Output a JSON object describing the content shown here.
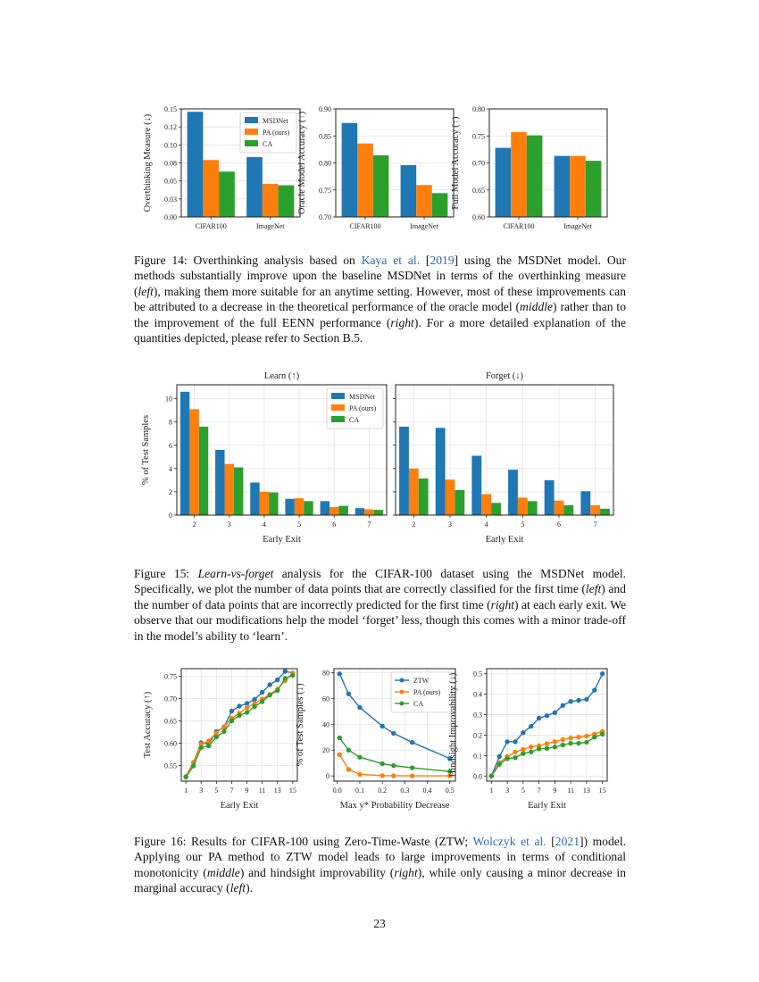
{
  "colors": {
    "MSDNet": "#1f77b4",
    "ZTW": "#1f77b4",
    "PA (ours)": "#ff7f0e",
    "CA": "#2ca02c",
    "link": "#2b6cb0"
  },
  "fig14": {
    "caption": [
      {
        "t": "Figure 14: Overthinking analysis based on "
      },
      {
        "t": "Kaya et al.",
        "s": "ln"
      },
      {
        "t": " ["
      },
      {
        "t": "2019",
        "s": "ln"
      },
      {
        "t": "] using the MSDNet model. Our methods substantially improve upon the baseline MSDNet in terms of the overthinking measure ("
      },
      {
        "t": "left",
        "s": "it"
      },
      {
        "t": "), making them more suitable for an anytime setting. However, most of these improvements can be attributed to a decrease in the theoretical performance of the oracle model ("
      },
      {
        "t": "middle",
        "s": "it"
      },
      {
        "t": ") rather than to the improvement of the full EENN performance ("
      },
      {
        "t": "right",
        "s": "it"
      },
      {
        "t": "). For a more detailed explanation of the quantities depicted, please refer to Section B.5."
      }
    ]
  },
  "fig15": {
    "caption": [
      {
        "t": "Figure 15: "
      },
      {
        "t": "Learn-vs-forget",
        "s": "it"
      },
      {
        "t": " analysis for the CIFAR-100 dataset using the MSDNet model. Specifically, we plot the number of data points that are correctly classified for the first time ("
      },
      {
        "t": "left",
        "s": "it"
      },
      {
        "t": ") and the number of data points that are incorrectly predicted for the first time ("
      },
      {
        "t": "right",
        "s": "it"
      },
      {
        "t": ") at each early exit. We observe that our modifications help the model ‘forget’ less, though this comes with a minor trade-off in the model’s ability to ‘learn’."
      }
    ]
  },
  "fig16": {
    "caption": [
      {
        "t": "Figure 16: Results for CIFAR-100 using Zero-Time-Waste (ZTW; "
      },
      {
        "t": "Wolczyk et al.",
        "s": "ln"
      },
      {
        "t": " ["
      },
      {
        "t": "2021",
        "s": "ln"
      },
      {
        "t": "]) model. Applying our PA method to ZTW model leads to large improvements in terms of conditional monotonicity ("
      },
      {
        "t": "middle",
        "s": "it"
      },
      {
        "t": ") and hindsight improvability ("
      },
      {
        "t": "right",
        "s": "it"
      },
      {
        "t": "), while only causing a minor decrease in marginal accuracy ("
      },
      {
        "t": "left",
        "s": "it"
      },
      {
        "t": ")."
      }
    ]
  },
  "page_number": "23",
  "chart_data": [
    {
      "id": "f14a",
      "type": "bar",
      "title": "",
      "xlabel": "",
      "ylabel": "Overthinking Measure (↓)",
      "categories": [
        "CIFAR100",
        "ImageNet"
      ],
      "ylim": [
        0,
        0.15
      ],
      "yticks": [
        0,
        0.025,
        0.05,
        0.075,
        0.1,
        0.125,
        0.15
      ],
      "yticklabels": [
        "0.00",
        "0.03",
        "0.05",
        "0.08",
        "0.10",
        "0.12",
        "0.15"
      ],
      "grid": true,
      "legend": "top-right",
      "series": [
        {
          "name": "MSDNet",
          "values": [
            0.146,
            0.083
          ]
        },
        {
          "name": "PA (ours)",
          "values": [
            0.079,
            0.046
          ]
        },
        {
          "name": "CA",
          "values": [
            0.063,
            0.044
          ]
        }
      ]
    },
    {
      "id": "f14b",
      "type": "bar",
      "title": "",
      "xlabel": "",
      "ylabel": "Oracle Model Accuracy (↑)",
      "categories": [
        "CIFAR100",
        "ImageNet"
      ],
      "ylim": [
        0.7,
        0.9
      ],
      "yticks": [
        0.7,
        0.75,
        0.8,
        0.85,
        0.9
      ],
      "yticklabels": [
        "0.70",
        "0.75",
        "0.80",
        "0.85",
        "0.90"
      ],
      "grid": true,
      "series": [
        {
          "name": "MSDNet",
          "values": [
            0.874,
            0.796
          ]
        },
        {
          "name": "PA (ours)",
          "values": [
            0.836,
            0.759
          ]
        },
        {
          "name": "CA",
          "values": [
            0.814,
            0.744
          ]
        }
      ]
    },
    {
      "id": "f14c",
      "type": "bar",
      "title": "",
      "xlabel": "",
      "ylabel": "Full Model Accuracy (↑)",
      "categories": [
        "CIFAR100",
        "ImageNet"
      ],
      "ylim": [
        0.6,
        0.8
      ],
      "yticks": [
        0.6,
        0.65,
        0.7,
        0.75,
        0.8
      ],
      "yticklabels": [
        "0.60",
        "0.65",
        "0.70",
        "0.75",
        "0.80"
      ],
      "grid": true,
      "series": [
        {
          "name": "MSDNet",
          "values": [
            0.728,
            0.713
          ]
        },
        {
          "name": "PA (ours)",
          "values": [
            0.757,
            0.713
          ]
        },
        {
          "name": "CA",
          "values": [
            0.751,
            0.704
          ]
        }
      ]
    },
    {
      "id": "f15a",
      "type": "bar",
      "title": "Learn (↑)",
      "xlabel": "Early Exit",
      "ylabel": "% of Test Samples",
      "categories": [
        "2",
        "3",
        "4",
        "5",
        "6",
        "7"
      ],
      "ylim": [
        0,
        11.2
      ],
      "yticks": [
        0,
        2,
        4,
        6,
        8,
        10
      ],
      "yticklabels": [
        "0",
        "2",
        "4",
        "6",
        "8",
        "10"
      ],
      "grid": true,
      "legend": "top-right",
      "series": [
        {
          "name": "MSDNet",
          "values": [
            10.6,
            5.6,
            2.8,
            1.4,
            1.2,
            0.6
          ]
        },
        {
          "name": "PA (ours)",
          "values": [
            9.1,
            4.4,
            2.0,
            1.45,
            0.7,
            0.5
          ]
        },
        {
          "name": "CA",
          "values": [
            7.6,
            4.1,
            1.95,
            1.2,
            0.8,
            0.45
          ]
        }
      ]
    },
    {
      "id": "f15b",
      "type": "bar",
      "title": "Forget (↓)",
      "xlabel": "Early Exit",
      "ylabel": "",
      "categories": [
        "2",
        "3",
        "4",
        "5",
        "6",
        "7"
      ],
      "ylim": [
        0,
        11.2
      ],
      "yticks": [
        0,
        2,
        4,
        6,
        8,
        10
      ],
      "yticklabels": [],
      "grid": true,
      "series": [
        {
          "name": "MSDNet",
          "values": [
            7.6,
            7.5,
            5.1,
            3.9,
            3.0,
            2.05
          ]
        },
        {
          "name": "PA (ours)",
          "values": [
            4.0,
            3.05,
            1.8,
            1.5,
            1.25,
            0.85
          ]
        },
        {
          "name": "CA",
          "values": [
            3.15,
            2.15,
            1.05,
            1.2,
            0.85,
            0.55
          ]
        }
      ]
    },
    {
      "id": "f16a",
      "type": "line",
      "title": "",
      "xlabel": "Early Exit",
      "ylabel": "Test Accuracy (↑)",
      "x": [
        1,
        2,
        3,
        4,
        5,
        6,
        7,
        8,
        9,
        10,
        11,
        12,
        13,
        14,
        15
      ],
      "xlim": [
        0.4,
        15.6
      ],
      "xticks": [
        1,
        3,
        5,
        7,
        9,
        11,
        13,
        15
      ],
      "ylim": [
        0.515,
        0.767
      ],
      "yticks": [
        0.55,
        0.6,
        0.65,
        0.7,
        0.75
      ],
      "yticklabels": [
        "0.55",
        "0.60",
        "0.65",
        "0.70",
        "0.75"
      ],
      "grid": true,
      "series": [
        {
          "name": "ZTW",
          "values": [
            0.525,
            0.557,
            0.601,
            0.598,
            0.626,
            0.636,
            0.672,
            0.683,
            0.689,
            0.698,
            0.714,
            0.731,
            0.742,
            0.761,
            0.757
          ]
        },
        {
          "name": "PA (ours)",
          "values": [
            0.525,
            0.557,
            0.598,
            0.605,
            0.623,
            0.637,
            0.656,
            0.667,
            0.68,
            0.689,
            0.699,
            0.709,
            0.721,
            0.74,
            0.757
          ]
        },
        {
          "name": "CA",
          "values": [
            0.524,
            0.549,
            0.59,
            0.594,
            0.614,
            0.626,
            0.65,
            0.662,
            0.669,
            0.682,
            0.693,
            0.708,
            0.718,
            0.745,
            0.752
          ]
        }
      ]
    },
    {
      "id": "f16b",
      "type": "line",
      "title": "",
      "xlabel": "Max y* Probability Decrease",
      "ylabel": "% of Test Samples (↓)",
      "x": [
        0.01,
        0.05,
        0.1,
        0.2,
        0.25,
        0.333,
        0.5
      ],
      "xlim": [
        -0.015,
        0.525
      ],
      "xticks": [
        0,
        0.1,
        0.2,
        0.3,
        0.4,
        0.5
      ],
      "xticklabels": [
        "0.0",
        "0.1",
        "0.2",
        "0.3",
        "0.4",
        "0.5"
      ],
      "ylim": [
        -4,
        83
      ],
      "yticks": [
        0,
        20,
        40,
        60,
        80
      ],
      "yticklabels": [
        "0",
        "20",
        "40",
        "60",
        "80"
      ],
      "grid": true,
      "legend": "top-right",
      "series": [
        {
          "name": "ZTW",
          "values": [
            79,
            63.5,
            53,
            38.5,
            33,
            26,
            13.5
          ]
        },
        {
          "name": "PA (ours)",
          "values": [
            16.5,
            5,
            1.3,
            0.3,
            0.2,
            0.1,
            0.1
          ]
        },
        {
          "name": "CA",
          "values": [
            29.5,
            20,
            14.5,
            9.5,
            8,
            6.3,
            3.5
          ]
        }
      ]
    },
    {
      "id": "f16c",
      "type": "line",
      "title": "",
      "xlabel": "Early Exit",
      "ylabel": "Hindsight Improvability (↓)",
      "x": [
        1,
        2,
        3,
        4,
        5,
        6,
        7,
        8,
        9,
        10,
        11,
        12,
        13,
        14,
        15
      ],
      "xlim": [
        0.4,
        15.6
      ],
      "xticks": [
        1,
        3,
        5,
        7,
        9,
        11,
        13,
        15
      ],
      "ylim": [
        -0.025,
        0.525
      ],
      "yticks": [
        0,
        0.1,
        0.2,
        0.3,
        0.4,
        0.5
      ],
      "yticklabels": [
        "0.0",
        "0.1",
        "0.2",
        "0.3",
        "0.4",
        "0.5"
      ],
      "grid": true,
      "series": [
        {
          "name": "ZTW",
          "values": [
            0,
            0.095,
            0.168,
            0.168,
            0.212,
            0.243,
            0.283,
            0.295,
            0.31,
            0.345,
            0.365,
            0.37,
            0.375,
            0.42,
            0.5
          ]
        },
        {
          "name": "PA (ours)",
          "values": [
            0,
            0.065,
            0.095,
            0.117,
            0.13,
            0.143,
            0.148,
            0.158,
            0.168,
            0.178,
            0.186,
            0.19,
            0.195,
            0.205,
            0.218
          ]
        },
        {
          "name": "CA",
          "values": [
            0,
            0.057,
            0.085,
            0.09,
            0.11,
            0.118,
            0.133,
            0.135,
            0.142,
            0.152,
            0.16,
            0.16,
            0.165,
            0.19,
            0.205
          ]
        }
      ]
    }
  ]
}
